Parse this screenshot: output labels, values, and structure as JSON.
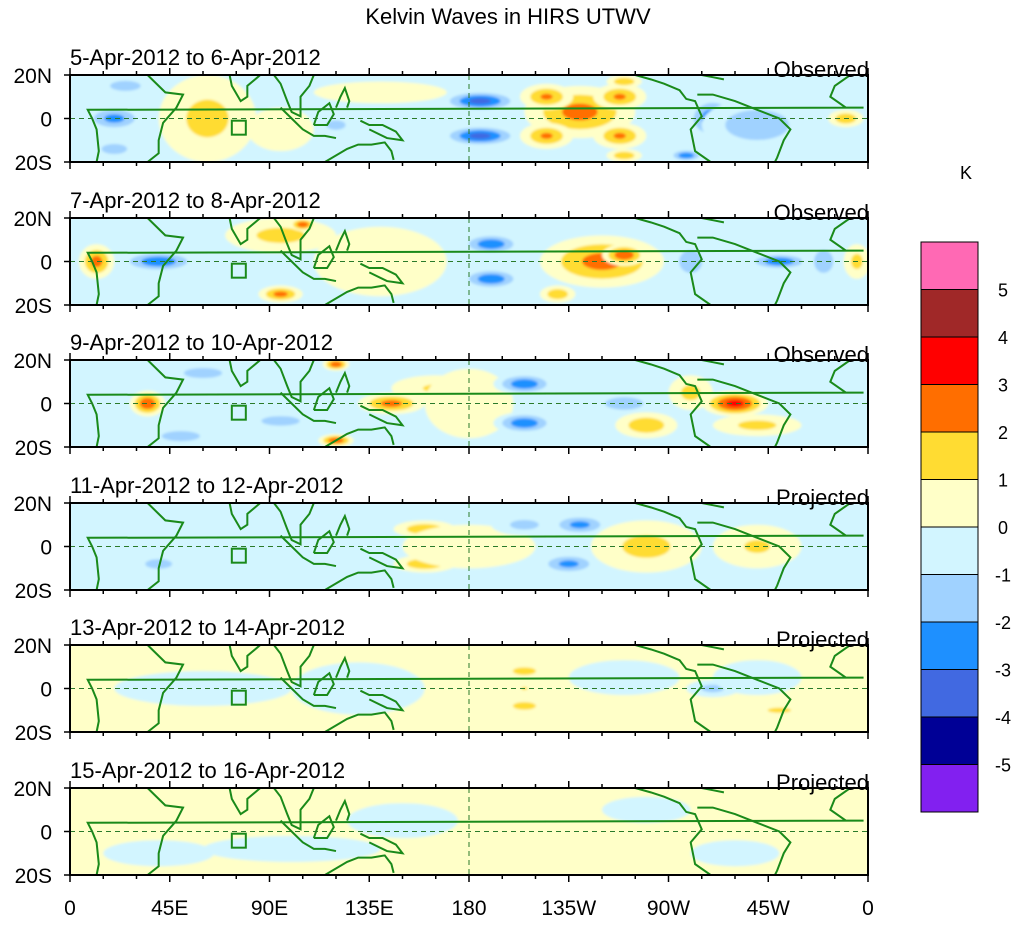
{
  "chart_data": {
    "type": "heatmap",
    "title": "Kelvin Waves in HIRS UTWV",
    "colorbar": {
      "unit": "K",
      "levels": [
        -5,
        -4,
        -3,
        -2,
        -1,
        0,
        1,
        2,
        3,
        4,
        5
      ],
      "colors": [
        "#8220f0",
        "#000096",
        "#4169e1",
        "#1e90ff",
        "#a0d2ff",
        "#d2f5ff",
        "#ffffc8",
        "#ffdc32",
        "#ff6e00",
        "#ff0000",
        "#a02828",
        "#ff69b4"
      ],
      "labels": [
        "5",
        "4",
        "3",
        "2",
        "1",
        "0",
        "-1",
        "-2",
        "-3",
        "-4",
        "-5"
      ]
    },
    "x_ticks": [
      "0",
      "45E",
      "90E",
      "135E",
      "180",
      "135W",
      "90W",
      "45W",
      "0"
    ],
    "y_ticks": [
      "20N",
      "0",
      "20S"
    ],
    "xlim": [
      0,
      360
    ],
    "ylim": [
      -20,
      20
    ],
    "panels": [
      {
        "title": "5-Apr-2012 to 6-Apr-2012",
        "status": "Observed",
        "base": -0.5,
        "blobs": [
          [
            60,
            0,
            3.5,
            14,
            6
          ],
          [
            62,
            0,
            1.5,
            22,
            20
          ],
          [
            20,
            0,
            -2.5,
            14,
            6
          ],
          [
            20,
            -14,
            -2,
            10,
            4
          ],
          [
            25,
            15,
            -2,
            12,
            4
          ],
          [
            185,
            8,
            -3.5,
            18,
            5
          ],
          [
            185,
            -8,
            -3.5,
            18,
            5
          ],
          [
            230,
            3,
            2.5,
            25,
            12
          ],
          [
            215,
            10,
            2.2,
            12,
            6
          ],
          [
            248,
            10,
            2.2,
            12,
            6
          ],
          [
            215,
            -8,
            2.2,
            12,
            6
          ],
          [
            248,
            -8,
            2.2,
            12,
            6
          ],
          [
            290,
            0,
            -3,
            12,
            10
          ],
          [
            310,
            -3,
            -2,
            25,
            12
          ],
          [
            140,
            12,
            0.5,
            30,
            5
          ],
          [
            95,
            -5,
            0.5,
            15,
            10
          ],
          [
            120,
            -3,
            -1.5,
            10,
            5
          ],
          [
            250,
            17,
            2,
            8,
            3
          ],
          [
            250,
            -17,
            2,
            8,
            3
          ],
          [
            278,
            -17,
            -3,
            8,
            3
          ],
          [
            350,
            0,
            2,
            8,
            4
          ]
        ]
      },
      {
        "title": "7-Apr-2012 to 8-Apr-2012",
        "status": "Observed",
        "base": -0.5,
        "blobs": [
          [
            12,
            0,
            2.5,
            8,
            8
          ],
          [
            40,
            0,
            -3,
            18,
            5
          ],
          [
            95,
            12,
            1.5,
            25,
            8
          ],
          [
            105,
            17,
            3,
            6,
            3
          ],
          [
            95,
            -15,
            2.5,
            10,
            4
          ],
          [
            140,
            0,
            0.5,
            30,
            16
          ],
          [
            190,
            8,
            -3,
            14,
            5
          ],
          [
            190,
            -8,
            -3,
            14,
            5
          ],
          [
            240,
            0,
            2.5,
            28,
            12
          ],
          [
            250,
            3,
            3,
            10,
            5
          ],
          [
            220,
            -15,
            2,
            8,
            4
          ],
          [
            280,
            0,
            -1.5,
            12,
            12
          ],
          [
            320,
            0,
            -3,
            15,
            4
          ],
          [
            340,
            0,
            -1.5,
            10,
            12
          ],
          [
            355,
            0,
            1.5,
            6,
            8
          ]
        ]
      },
      {
        "title": "9-Apr-2012 to 10-Apr-2012",
        "status": "Observed",
        "base": -0.5,
        "blobs": [
          [
            35,
            0,
            3,
            8,
            6
          ],
          [
            50,
            -15,
            -2,
            15,
            4
          ],
          [
            60,
            14,
            -2,
            15,
            4
          ],
          [
            95,
            -8,
            -1.5,
            20,
            5
          ],
          [
            120,
            18,
            3,
            6,
            3
          ],
          [
            120,
            -17,
            3,
            8,
            3
          ],
          [
            145,
            0,
            2.5,
            15,
            5
          ],
          [
            165,
            7,
            1.2,
            20,
            6
          ],
          [
            180,
            0,
            0.5,
            20,
            16
          ],
          [
            205,
            9,
            -3,
            14,
            5
          ],
          [
            205,
            -9,
            -3,
            14,
            5
          ],
          [
            250,
            0,
            -2,
            15,
            5
          ],
          [
            280,
            5,
            1.5,
            10,
            8
          ],
          [
            300,
            0,
            3.5,
            15,
            6
          ],
          [
            260,
            -10,
            2,
            14,
            6
          ],
          [
            310,
            -10,
            1.5,
            20,
            5
          ]
        ]
      },
      {
        "title": "11-Apr-2012 to 12-Apr-2012",
        "status": "Projected",
        "base": -0.5,
        "blobs": [
          [
            40,
            -8,
            -1.5,
            14,
            5
          ],
          [
            80,
            3,
            -1,
            30,
            5
          ],
          [
            160,
            8,
            2,
            14,
            4
          ],
          [
            160,
            -8,
            2,
            14,
            4
          ],
          [
            180,
            0,
            1,
            30,
            10
          ],
          [
            205,
            10,
            -1.5,
            15,
            5
          ],
          [
            230,
            10,
            -2.5,
            14,
            5
          ],
          [
            225,
            -8,
            -2.5,
            14,
            5
          ],
          [
            260,
            0,
            1.5,
            25,
            12
          ],
          [
            320,
            0,
            2.5,
            10,
            5
          ],
          [
            310,
            0,
            1.2,
            20,
            10
          ]
        ]
      },
      {
        "title": "13-Apr-2012 to 14-Apr-2012",
        "status": "Projected",
        "base": 0.5,
        "blobs": [
          [
            60,
            0,
            -0.5,
            40,
            8
          ],
          [
            130,
            0,
            -0.5,
            30,
            12
          ],
          [
            205,
            8,
            1.5,
            12,
            4
          ],
          [
            205,
            -8,
            1.5,
            12,
            4
          ],
          [
            205,
            0,
            1.3,
            4,
            2
          ],
          [
            250,
            5,
            -0.5,
            25,
            8
          ],
          [
            290,
            0,
            -1.5,
            12,
            4
          ],
          [
            320,
            -10,
            1.2,
            18,
            4
          ],
          [
            310,
            5,
            -0.5,
            20,
            8
          ]
        ]
      },
      {
        "title": "15-Apr-2012 to 16-Apr-2012",
        "status": "Projected",
        "base": 0.5,
        "blobs": [
          [
            40,
            -10,
            -0.5,
            25,
            6
          ],
          [
            100,
            -8,
            -0.5,
            40,
            6
          ],
          [
            150,
            5,
            -0.5,
            25,
            8
          ],
          [
            260,
            10,
            -0.5,
            20,
            6
          ],
          [
            300,
            -10,
            -0.5,
            20,
            6
          ]
        ]
      }
    ]
  }
}
